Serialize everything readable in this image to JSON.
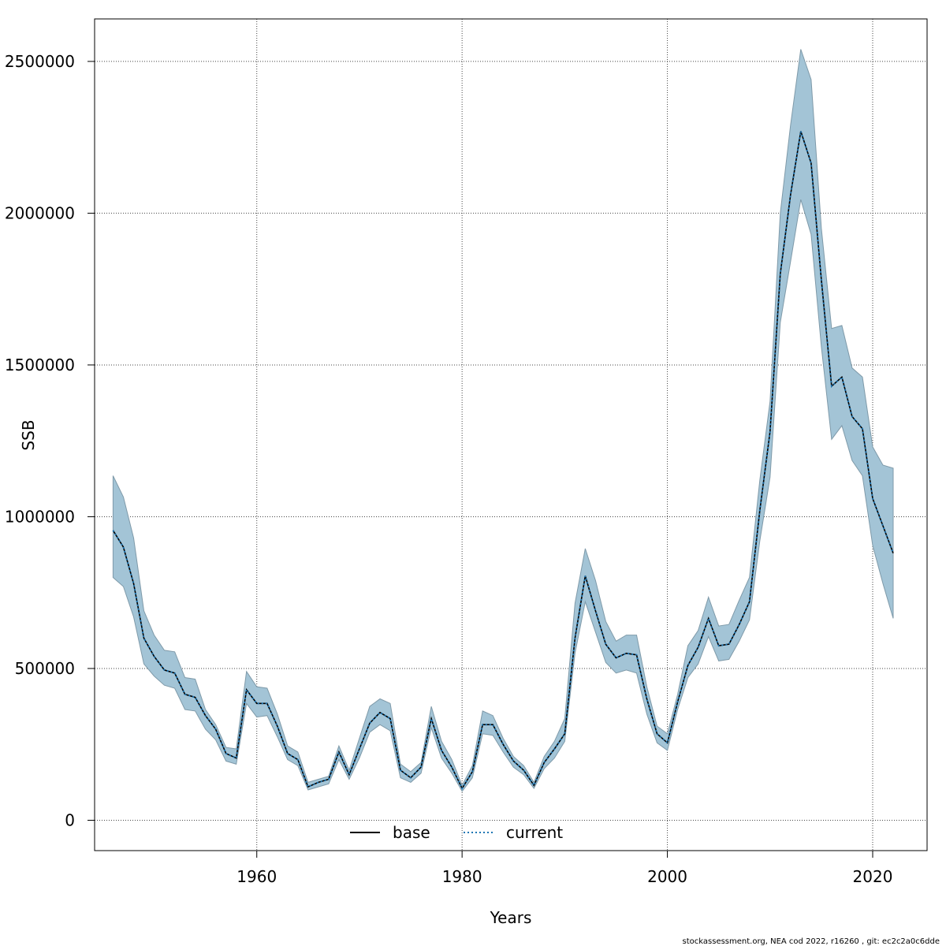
{
  "chart_data": {
    "type": "line",
    "xlabel": "Years",
    "ylabel": "SSB",
    "xlim": [
      1944.2,
      2025.3
    ],
    "ylim": [
      -100000,
      2640000
    ],
    "x_ticks": [
      1960,
      1980,
      2000,
      2020
    ],
    "y_ticks": [
      0,
      500000,
      1000000,
      1500000,
      2000000,
      2500000
    ],
    "x_tick_labels": [
      "1960",
      "1980",
      "2000",
      "2020"
    ],
    "y_tick_labels": [
      "0",
      "500000",
      "1000000",
      "1500000",
      "2000000",
      "2500000"
    ],
    "grid": true,
    "legend_position": "bottom-center",
    "years": [
      1946,
      1947,
      1948,
      1949,
      1950,
      1951,
      1952,
      1953,
      1954,
      1955,
      1956,
      1957,
      1958,
      1959,
      1960,
      1961,
      1962,
      1963,
      1964,
      1965,
      1966,
      1967,
      1968,
      1969,
      1970,
      1971,
      1972,
      1973,
      1974,
      1975,
      1976,
      1977,
      1978,
      1979,
      1980,
      1981,
      1982,
      1983,
      1984,
      1985,
      1986,
      1987,
      1988,
      1989,
      1990,
      1991,
      1992,
      1993,
      1994,
      1995,
      1996,
      1997,
      1998,
      1999,
      2000,
      2001,
      2002,
      2003,
      2004,
      2005,
      2006,
      2007,
      2008,
      2009,
      2010,
      2011,
      2012,
      2013,
      2014,
      2015,
      2016,
      2017,
      2018,
      2019,
      2020,
      2021,
      2022
    ],
    "series": [
      {
        "name": "base",
        "style": "solid",
        "color": "#000000",
        "values": [
          955000,
          900000,
          780000,
          600000,
          540000,
          495000,
          485000,
          415000,
          405000,
          345000,
          300000,
          220000,
          205000,
          430000,
          385000,
          385000,
          310000,
          220000,
          200000,
          110000,
          125000,
          135000,
          225000,
          150000,
          235000,
          320000,
          355000,
          335000,
          165000,
          140000,
          175000,
          335000,
          230000,
          175000,
          105000,
          160000,
          315000,
          315000,
          250000,
          195000,
          165000,
          115000,
          190000,
          235000,
          285000,
          600000,
          805000,
          690000,
          580000,
          535000,
          550000,
          545000,
          400000,
          285000,
          255000,
          390000,
          510000,
          570000,
          665000,
          575000,
          580000,
          645000,
          720000,
          1020000,
          1280000,
          1800000,
          2060000,
          2270000,
          2165000,
          1780000,
          1430000,
          1460000,
          1330000,
          1290000,
          1060000,
          970000,
          880000
        ]
      },
      {
        "name": "current",
        "style": "dotted",
        "color": "#1f77b4",
        "values": [
          955000,
          900000,
          780000,
          600000,
          540000,
          495000,
          485000,
          415000,
          405000,
          345000,
          300000,
          220000,
          205000,
          430000,
          385000,
          385000,
          310000,
          220000,
          200000,
          110000,
          125000,
          135000,
          225000,
          150000,
          235000,
          320000,
          355000,
          335000,
          165000,
          140000,
          175000,
          335000,
          230000,
          175000,
          105000,
          160000,
          315000,
          315000,
          250000,
          195000,
          165000,
          115000,
          190000,
          235000,
          285000,
          600000,
          805000,
          690000,
          580000,
          535000,
          550000,
          545000,
          400000,
          285000,
          255000,
          390000,
          510000,
          570000,
          665000,
          575000,
          580000,
          645000,
          720000,
          1020000,
          1280000,
          1800000,
          2060000,
          2270000,
          2165000,
          1780000,
          1430000,
          1460000,
          1330000,
          1290000,
          1060000,
          970000,
          880000
        ]
      }
    ],
    "confidence_band": {
      "color": "#a3c4d6",
      "upper": [
        1135000,
        1065000,
        930000,
        690000,
        610000,
        560000,
        555000,
        470000,
        465000,
        365000,
        315000,
        240000,
        235000,
        490000,
        440000,
        435000,
        350000,
        245000,
        225000,
        125000,
        135000,
        145000,
        245000,
        165000,
        270000,
        375000,
        400000,
        385000,
        185000,
        160000,
        190000,
        375000,
        260000,
        200000,
        115000,
        180000,
        360000,
        345000,
        270000,
        210000,
        180000,
        125000,
        210000,
        260000,
        335000,
        715000,
        895000,
        790000,
        655000,
        590000,
        610000,
        610000,
        440000,
        310000,
        285000,
        415000,
        575000,
        625000,
        735000,
        640000,
        645000,
        725000,
        800000,
        1120000,
        1380000,
        2000000,
        2290000,
        2540000,
        2440000,
        1950000,
        1620000,
        1630000,
        1490000,
        1460000,
        1230000,
        1170000,
        1160000
      ],
      "lower": [
        800000,
        770000,
        670000,
        515000,
        475000,
        445000,
        435000,
        365000,
        360000,
        300000,
        265000,
        195000,
        185000,
        385000,
        340000,
        345000,
        275000,
        200000,
        180000,
        100000,
        110000,
        120000,
        200000,
        135000,
        205000,
        290000,
        315000,
        295000,
        140000,
        125000,
        155000,
        305000,
        205000,
        155000,
        95000,
        140000,
        285000,
        280000,
        225000,
        175000,
        150000,
        105000,
        170000,
        205000,
        260000,
        550000,
        720000,
        620000,
        520000,
        485000,
        495000,
        485000,
        350000,
        255000,
        230000,
        365000,
        470000,
        515000,
        605000,
        525000,
        530000,
        590000,
        660000,
        920000,
        1130000,
        1640000,
        1840000,
        2045000,
        1930000,
        1560000,
        1255000,
        1300000,
        1185000,
        1135000,
        905000,
        780000,
        665000
      ]
    },
    "footer": "stockassessment.org, NEA  cod  2022, r16260 , git: ec2c2a0c6dde"
  }
}
